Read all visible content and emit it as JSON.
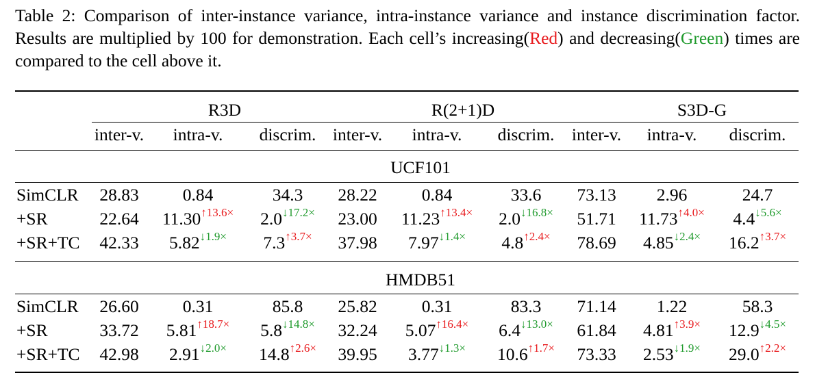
{
  "caption": {
    "part1": "Table 2: Comparison of inter-instance variance, intra-instance variance and instance discrimination factor. Results are multiplied by 100 for demonstration. Each cell’s increasing(",
    "red_word": "Red",
    "part2": ") and decreasing(",
    "green_word": "Green",
    "part3": ") times are compared to the cell above it."
  },
  "table": {
    "groups": [
      "R3D",
      "R(2+1)D",
      "S3D-G"
    ],
    "subheaders": [
      "inter-v.",
      "intra-v.",
      "discrim.",
      "inter-v.",
      "intra-v.",
      "discrim.",
      "inter-v.",
      "intra-v.",
      "discrim."
    ],
    "sections": [
      {
        "name": "UCF101",
        "rows": [
          {
            "label": "SimCLR",
            "cells": [
              {
                "v": "28.83"
              },
              {
                "v": "0.84"
              },
              {
                "v": "34.3"
              },
              {
                "v": "28.22"
              },
              {
                "v": "0.84"
              },
              {
                "v": "33.6"
              },
              {
                "v": "73.13"
              },
              {
                "v": "2.96"
              },
              {
                "v": "24.7"
              }
            ]
          },
          {
            "label": "+SR",
            "cells": [
              {
                "v": "22.64"
              },
              {
                "v": "11.30",
                "s": "↑13.6×",
                "c": "red"
              },
              {
                "v": "2.0",
                "s": "↓17.2×",
                "c": "green"
              },
              {
                "v": "23.00"
              },
              {
                "v": "11.23",
                "s": "↑13.4×",
                "c": "red"
              },
              {
                "v": "2.0",
                "s": "↓16.8×",
                "c": "green"
              },
              {
                "v": "51.71"
              },
              {
                "v": "11.73",
                "s": "↑4.0×",
                "c": "red"
              },
              {
                "v": "4.4",
                "s": "↓5.6×",
                "c": "green"
              }
            ]
          },
          {
            "label": "+SR+TC",
            "cells": [
              {
                "v": "42.33"
              },
              {
                "v": "5.82",
                "s": "↓1.9×",
                "c": "green"
              },
              {
                "v": "7.3",
                "s": "↑3.7×",
                "c": "red"
              },
              {
                "v": "37.98"
              },
              {
                "v": "7.97",
                "s": "↓1.4×",
                "c": "green"
              },
              {
                "v": "4.8",
                "s": "↑2.4×",
                "c": "red"
              },
              {
                "v": "78.69"
              },
              {
                "v": "4.85",
                "s": "↓2.4×",
                "c": "green"
              },
              {
                "v": "16.2",
                "s": "↑3.7×",
                "c": "red"
              }
            ]
          }
        ]
      },
      {
        "name": "HMDB51",
        "rows": [
          {
            "label": "SimCLR",
            "cells": [
              {
                "v": "26.60"
              },
              {
                "v": "0.31"
              },
              {
                "v": "85.8"
              },
              {
                "v": "25.82"
              },
              {
                "v": "0.31"
              },
              {
                "v": "83.3"
              },
              {
                "v": "71.14"
              },
              {
                "v": "1.22"
              },
              {
                "v": "58.3"
              }
            ]
          },
          {
            "label": "+SR",
            "cells": [
              {
                "v": "33.72"
              },
              {
                "v": "5.81",
                "s": "↑18.7×",
                "c": "red"
              },
              {
                "v": "5.8",
                "s": "↓14.8×",
                "c": "green"
              },
              {
                "v": "32.24"
              },
              {
                "v": "5.07",
                "s": "↑16.4×",
                "c": "red"
              },
              {
                "v": "6.4",
                "s": "↓13.0×",
                "c": "green"
              },
              {
                "v": "61.84"
              },
              {
                "v": "4.81",
                "s": "↑3.9×",
                "c": "red"
              },
              {
                "v": "12.9",
                "s": "↓4.5×",
                "c": "green"
              }
            ]
          },
          {
            "label": "+SR+TC",
            "cells": [
              {
                "v": "42.98"
              },
              {
                "v": "2.91",
                "s": "↓2.0×",
                "c": "green"
              },
              {
                "v": "14.8",
                "s": "↑2.6×",
                "c": "red"
              },
              {
                "v": "39.95"
              },
              {
                "v": "3.77",
                "s": "↓1.3×",
                "c": "green"
              },
              {
                "v": "10.6",
                "s": "↑1.7×",
                "c": "red"
              },
              {
                "v": "73.33"
              },
              {
                "v": "2.53",
                "s": "↓1.9×",
                "c": "green"
              },
              {
                "v": "29.0",
                "s": "↑2.2×",
                "c": "red"
              }
            ]
          }
        ]
      }
    ]
  }
}
